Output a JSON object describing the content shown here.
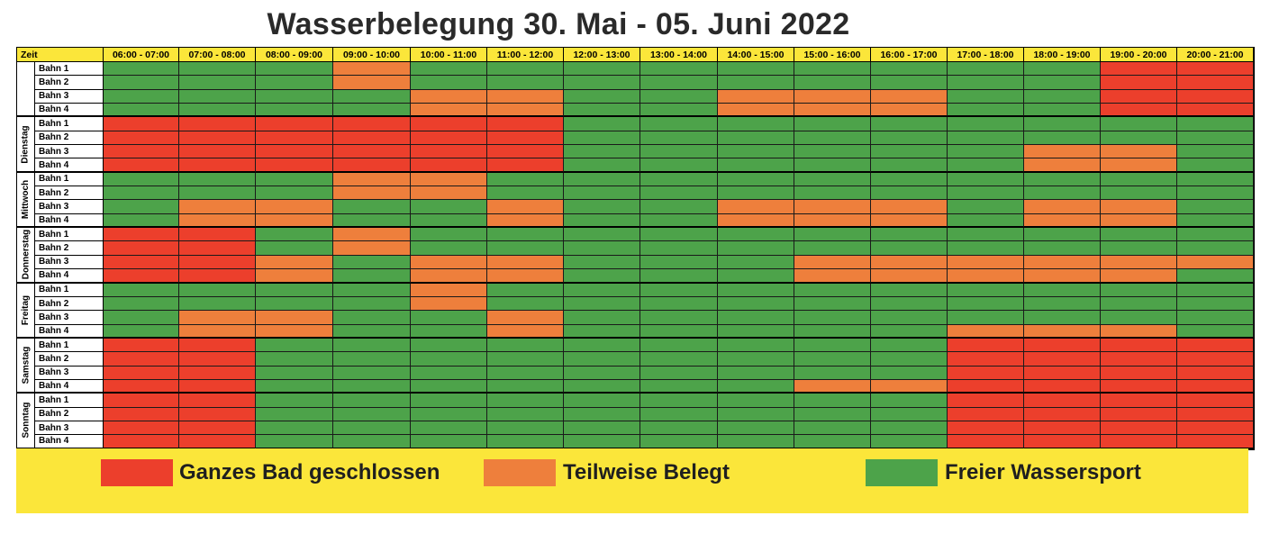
{
  "title": "Wasserbelegung 30. Mai - 05. Juni 2022",
  "header": {
    "corner": "Zeit",
    "slots": [
      "06:00 - 07:00",
      "07:00 - 08:00",
      "08:00 - 09:00",
      "09:00 - 10:00",
      "10:00 - 11:00",
      "11:00 - 12:00",
      "12:00 - 13:00",
      "13:00 - 14:00",
      "14:00 - 15:00",
      "15:00 - 16:00",
      "16:00 - 17:00",
      "17:00 - 18:00",
      "18:00 - 19:00",
      "19:00 - 20:00",
      "20:00 - 21:00"
    ]
  },
  "colors": {
    "R": "#ec3f2c",
    "O": "#ee7f3c",
    "G": "#4da34a"
  },
  "days": [
    {
      "name": "",
      "lanes": [
        {
          "label": "Bahn 1",
          "cells": "GGGOGGGGGGGGGRR"
        },
        {
          "label": "Bahn 2",
          "cells": "GGGOGGGGGGGGGRR"
        },
        {
          "label": "Bahn 3",
          "cells": "GGGGOOGGOOOGGRR"
        },
        {
          "label": "Bahn 4",
          "cells": "GGGGOOGGOOOGGRR"
        }
      ]
    },
    {
      "name": "Dienstag",
      "lanes": [
        {
          "label": "Bahn 1",
          "cells": "RRRRRRGGGGGGGGG"
        },
        {
          "label": "Bahn 2",
          "cells": "RRRRRRGGGGGGGGG"
        },
        {
          "label": "Bahn 3",
          "cells": "RRRRRRGGGGGGOOG"
        },
        {
          "label": "Bahn 4",
          "cells": "RRRRRRGGGGGGOOG"
        }
      ]
    },
    {
      "name": "Mittwoch",
      "lanes": [
        {
          "label": "Bahn 1",
          "cells": "GGGOOGGGGGGGGGG"
        },
        {
          "label": "Bahn 2",
          "cells": "GGGOOGGGGGGGGGG"
        },
        {
          "label": "Bahn 3",
          "cells": "GOOGGOGGOOOGOOG"
        },
        {
          "label": "Bahn 4",
          "cells": "GOOGGOGGOOOGOOG"
        }
      ]
    },
    {
      "name": "Donnerstag",
      "lanes": [
        {
          "label": "Bahn 1",
          "cells": "RRGOGGGGGGGGGGG"
        },
        {
          "label": "Bahn 2",
          "cells": "RRGOGGGGGGGGGGG"
        },
        {
          "label": "Bahn 3",
          "cells": "RROGOOGGGOOOOOO"
        },
        {
          "label": "Bahn 4",
          "cells": "RROGOOGGGOOOOOG"
        }
      ]
    },
    {
      "name": "Freitag",
      "lanes": [
        {
          "label": "Bahn 1",
          "cells": "GGGGOGGGGGGGGGG"
        },
        {
          "label": "Bahn 2",
          "cells": "GGGGOGGGGGGGGGG"
        },
        {
          "label": "Bahn 3",
          "cells": "GOOGGOGGGGGGGGG"
        },
        {
          "label": "Bahn 4",
          "cells": "GOOGGOGGGGGOOOG"
        }
      ]
    },
    {
      "name": "Samstag",
      "lanes": [
        {
          "label": "Bahn 1",
          "cells": "RRGGGGGGGGGRRRR"
        },
        {
          "label": "Bahn 2",
          "cells": "RRGGGGGGGGGRRRR"
        },
        {
          "label": "Bahn 3",
          "cells": "RRGGGGGGGGGRRRR"
        },
        {
          "label": "Bahn 4",
          "cells": "RRGGGGGGGOORRRR"
        }
      ]
    },
    {
      "name": "Sonntag",
      "lanes": [
        {
          "label": "Bahn 1",
          "cells": "RRGGGGGGGGGRRRR"
        },
        {
          "label": "Bahn 2",
          "cells": "RRGGGGGGGGGRRRR"
        },
        {
          "label": "Bahn 3",
          "cells": "RRGGGGGGGGGRRRR"
        },
        {
          "label": "Bahn 4",
          "cells": "RRGGGGGGGGGRRRR"
        }
      ]
    }
  ],
  "legend": [
    {
      "key": "R",
      "label": "Ganzes Bad geschlossen"
    },
    {
      "key": "O",
      "label": "Teilweise Belegt"
    },
    {
      "key": "G",
      "label": "Freier Wassersport"
    }
  ]
}
